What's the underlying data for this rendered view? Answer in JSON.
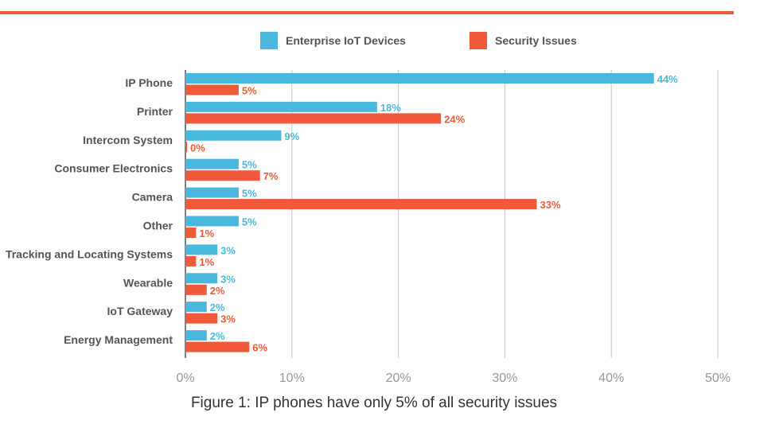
{
  "caption": "Figure 1: IP phones have only 5% of all security issues",
  "colors": {
    "accent_rule": "#ee5a3a",
    "grid": "#c8c8c8",
    "axis_text": "#999999",
    "category_text": "#555555"
  },
  "chart_data": {
    "type": "bar",
    "orientation": "horizontal",
    "categories": [
      "IP Phone",
      "Printer",
      "Intercom System",
      "Consumer Electronics",
      "Camera",
      "Other",
      "Tracking and Locating Systems",
      "Wearable",
      "IoT Gateway",
      "Energy Management"
    ],
    "series": [
      {
        "name": "Enterprise IoT Devices",
        "color": "#4ab8dc",
        "label_color": "#4ab8dc",
        "values": [
          44,
          18,
          9,
          5,
          5,
          5,
          3,
          3,
          2,
          2
        ],
        "labels": [
          "44%",
          "18%",
          "9%",
          "5%",
          "5%",
          "5%",
          "3%",
          "3%",
          "2%",
          "2%"
        ]
      },
      {
        "name": "Security Issues",
        "color": "#ee5a3a",
        "label_color": "#ee5a3a",
        "values": [
          5,
          24,
          0,
          7,
          33,
          1,
          1,
          2,
          3,
          6
        ],
        "labels": [
          "5%",
          "24%",
          "0%",
          "7%",
          "33%",
          "1%",
          "1%",
          "2%",
          "3%",
          "6%"
        ]
      }
    ],
    "xlim": [
      0,
      50
    ],
    "xticks": [
      0,
      10,
      20,
      30,
      40,
      50
    ],
    "xtick_labels": [
      "0%",
      "10%",
      "20%",
      "30%",
      "40%",
      "50%"
    ],
    "grid": true,
    "legend_position": "top"
  }
}
